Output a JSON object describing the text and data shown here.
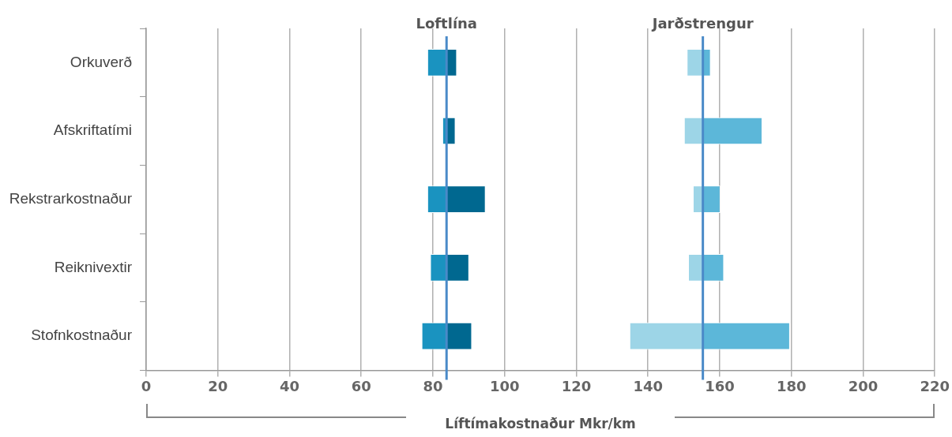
{
  "chart_data": {
    "type": "bar",
    "orientation": "horizontal",
    "xlabel": "Líftímakostnaður Mkr/km",
    "categories": [
      "Orkuverð",
      "Afskriftatími",
      "Rekstrarkostnaður",
      "Reiknivextir",
      "Stofnkostnaður"
    ],
    "series": [
      {
        "color": "#1a93c0",
        "base": [
          78.6,
          82.8,
          78.6,
          79.4,
          77.0
        ],
        "values": [
          5.2,
          1.0,
          5.2,
          4.4,
          6.8
        ]
      },
      {
        "color": "#006890",
        "base": [
          83.8,
          83.8,
          83.8,
          83.8,
          83.8
        ],
        "values": [
          2.9,
          2.5,
          10.9,
          6.3,
          7.1
        ]
      },
      {
        "color": "#9dd5e7",
        "base": [
          151.0,
          150.2,
          152.7,
          151.4,
          135.0
        ],
        "values": [
          4.3,
          5.1,
          2.6,
          3.9,
          20.3
        ]
      },
      {
        "color": "#5cb7d9",
        "base": [
          155.3,
          155.3,
          155.3,
          155.3,
          155.3
        ],
        "values": [
          2.2,
          16.6,
          4.9,
          5.9,
          24.3
        ]
      }
    ],
    "ref_lines": [
      {
        "axis": "x",
        "value": 83.8,
        "label": "Loftlína",
        "color": "#4a8ac8"
      },
      {
        "axis": "x",
        "value": 155.3,
        "label": "Jarðstrengur",
        "color": "#4a8ac8"
      }
    ],
    "xlim": [
      0,
      220
    ],
    "xticks": [
      0,
      20,
      40,
      60,
      80,
      100,
      120,
      140,
      160,
      180,
      200,
      220
    ],
    "grid": "x",
    "legend": false
  }
}
